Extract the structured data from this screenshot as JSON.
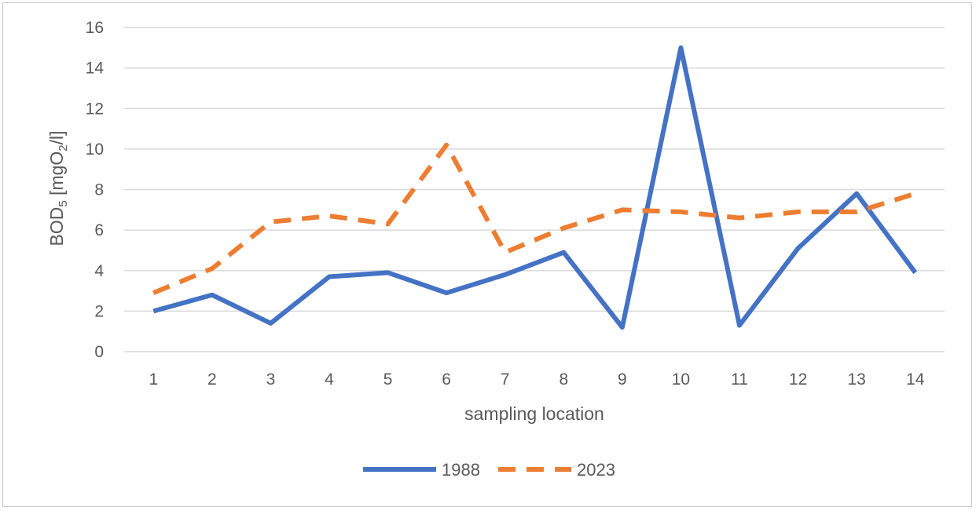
{
  "chart_data": {
    "type": "line",
    "title": "",
    "xlabel": "sampling location",
    "ylabel": {
      "base": "BOD",
      "sub1": "5",
      "mid": " [mgO",
      "sub2": "2",
      "end": "/l]"
    },
    "categories": [
      "1",
      "2",
      "3",
      "4",
      "5",
      "6",
      "7",
      "8",
      "9",
      "10",
      "11",
      "12",
      "13",
      "14"
    ],
    "ylim": [
      0,
      16
    ],
    "yticks": [
      "0",
      "2",
      "4",
      "6",
      "8",
      "10",
      "12",
      "14",
      "16"
    ],
    "grid": true,
    "legend_position": "bottom",
    "series": [
      {
        "name": "1988",
        "color": "#4472C4",
        "dash": "solid",
        "values": [
          2.0,
          2.8,
          1.4,
          3.7,
          3.9,
          2.9,
          3.8,
          4.9,
          1.2,
          15.0,
          1.3,
          5.1,
          7.8,
          3.9
        ]
      },
      {
        "name": "2023",
        "color": "#ED7D31",
        "dash": "dashed",
        "values": [
          2.9,
          4.1,
          6.4,
          6.7,
          6.3,
          10.2,
          4.9,
          6.1,
          7.0,
          6.9,
          6.6,
          6.9,
          6.9,
          7.8
        ]
      }
    ]
  }
}
